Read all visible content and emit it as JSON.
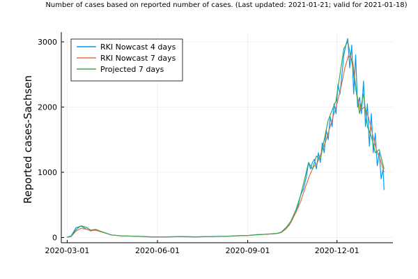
{
  "chart_data": {
    "type": "line",
    "title": "Number of cases based on reported number of cases. (Last updated: 2021-01-21; valid for 2021-01-18)",
    "xlabel": "",
    "ylabel": "Reported cases-Sachsen",
    "x_ticks": [
      "2020-03-01",
      "2020-06-01",
      "2020-09-01",
      "2020-12-01"
    ],
    "y_ticks": [
      0,
      1000,
      2000,
      3000
    ],
    "ylim": [
      -80,
      3150
    ],
    "xlim": [
      "2020-02-24",
      "2021-01-27"
    ],
    "grid": true,
    "legend_position": "top-left",
    "series": [
      {
        "name": "RKI Nowcast 4 days",
        "color": "#009AFA",
        "x": [
          "2020-03-01",
          "2020-03-05",
          "2020-03-10",
          "2020-03-15",
          "2020-03-20",
          "2020-03-25",
          "2020-03-30",
          "2020-04-05",
          "2020-04-15",
          "2020-04-25",
          "2020-05-10",
          "2020-05-25",
          "2020-06-10",
          "2020-06-25",
          "2020-07-10",
          "2020-07-25",
          "2020-08-10",
          "2020-08-25",
          "2020-09-01",
          "2020-09-10",
          "2020-09-20",
          "2020-09-30",
          "2020-10-05",
          "2020-10-10",
          "2020-10-13",
          "2020-10-16",
          "2020-10-19",
          "2020-10-22",
          "2020-10-25",
          "2020-10-28",
          "2020-10-31",
          "2020-11-02",
          "2020-11-04",
          "2020-11-06",
          "2020-11-08",
          "2020-11-10",
          "2020-11-12",
          "2020-11-14",
          "2020-11-16",
          "2020-11-18",
          "2020-11-20",
          "2020-11-22",
          "2020-11-24",
          "2020-11-26",
          "2020-11-28",
          "2020-11-30",
          "2020-12-02",
          "2020-12-04",
          "2020-12-06",
          "2020-12-08",
          "2020-12-10",
          "2020-12-12",
          "2020-12-14",
          "2020-12-16",
          "2020-12-18",
          "2020-12-20",
          "2020-12-22",
          "2020-12-24",
          "2020-12-26",
          "2020-12-28",
          "2020-12-30",
          "2021-01-01",
          "2021-01-03",
          "2021-01-05",
          "2021-01-07",
          "2021-01-09",
          "2021-01-11",
          "2021-01-13",
          "2021-01-15",
          "2021-01-17",
          "2021-01-18"
        ],
        "values": [
          5,
          25,
          150,
          175,
          135,
          100,
          120,
          90,
          40,
          25,
          20,
          10,
          10,
          15,
          10,
          15,
          20,
          30,
          30,
          45,
          50,
          60,
          80,
          150,
          180,
          260,
          380,
          470,
          650,
          750,
          950,
          1150,
          1050,
          1150,
          1200,
          1050,
          1300,
          1150,
          1450,
          1300,
          1650,
          1500,
          1850,
          1700,
          2050,
          1900,
          2350,
          2200,
          2500,
          2800,
          2950,
          3050,
          2600,
          2950,
          2200,
          2800,
          2000,
          2150,
          1900,
          2400,
          1700,
          2050,
          1400,
          1900,
          1300,
          1600,
          1100,
          1300,
          900,
          1050,
          730
        ]
      },
      {
        "name": "RKI Nowcast 7 days",
        "color": "#E26F46",
        "x": [
          "2020-03-01",
          "2020-03-05",
          "2020-03-10",
          "2020-03-15",
          "2020-03-20",
          "2020-03-25",
          "2020-03-30",
          "2020-04-05",
          "2020-04-15",
          "2020-04-25",
          "2020-05-10",
          "2020-05-25",
          "2020-06-10",
          "2020-06-25",
          "2020-07-10",
          "2020-07-25",
          "2020-08-10",
          "2020-08-25",
          "2020-09-01",
          "2020-09-10",
          "2020-09-20",
          "2020-09-30",
          "2020-10-05",
          "2020-10-10",
          "2020-10-15",
          "2020-10-20",
          "2020-10-25",
          "2020-10-30",
          "2020-11-03",
          "2020-11-07",
          "2020-11-11",
          "2020-11-15",
          "2020-11-19",
          "2020-11-23",
          "2020-11-27",
          "2020-12-01",
          "2020-12-05",
          "2020-12-09",
          "2020-12-13",
          "2020-12-17",
          "2020-12-21",
          "2020-12-25",
          "2020-12-29",
          "2021-01-02",
          "2021-01-06",
          "2021-01-10",
          "2021-01-14",
          "2021-01-18"
        ],
        "values": [
          5,
          15,
          100,
          140,
          130,
          105,
          110,
          85,
          40,
          25,
          20,
          10,
          10,
          12,
          10,
          14,
          18,
          28,
          30,
          42,
          50,
          60,
          75,
          130,
          230,
          380,
          550,
          780,
          950,
          1080,
          1150,
          1300,
          1450,
          1650,
          1850,
          2050,
          2300,
          2600,
          2800,
          2700,
          2200,
          1950,
          2000,
          1850,
          1600,
          1350,
          1200,
          1000
        ]
      },
      {
        "name": "Projected 7 days",
        "color": "#3EA44E",
        "x": [
          "2020-03-01",
          "2020-03-05",
          "2020-03-10",
          "2020-03-15",
          "2020-03-20",
          "2020-03-25",
          "2020-03-30",
          "2020-04-05",
          "2020-04-15",
          "2020-04-25",
          "2020-05-10",
          "2020-05-25",
          "2020-06-10",
          "2020-06-25",
          "2020-07-10",
          "2020-07-25",
          "2020-08-10",
          "2020-08-25",
          "2020-09-01",
          "2020-09-10",
          "2020-09-20",
          "2020-09-30",
          "2020-10-05",
          "2020-10-10",
          "2020-10-15",
          "2020-10-20",
          "2020-10-25",
          "2020-10-29",
          "2020-11-02",
          "2020-11-06",
          "2020-11-10",
          "2020-11-14",
          "2020-11-18",
          "2020-11-22",
          "2020-11-26",
          "2020-11-30",
          "2020-12-04",
          "2020-12-08",
          "2020-12-12",
          "2020-12-16",
          "2020-12-20",
          "2020-12-24",
          "2020-12-28",
          "2021-01-01",
          "2021-01-05",
          "2021-01-09",
          "2021-01-13",
          "2021-01-18"
        ],
        "values": [
          5,
          20,
          120,
          180,
          160,
          115,
          125,
          90,
          40,
          25,
          20,
          10,
          10,
          12,
          10,
          14,
          18,
          28,
          30,
          42,
          50,
          60,
          80,
          150,
          250,
          420,
          650,
          900,
          1150,
          1050,
          1250,
          1200,
          1500,
          1800,
          1950,
          2100,
          2500,
          2900,
          3000,
          2700,
          2300,
          1900,
          2200,
          1700,
          1550,
          1300,
          1350,
          1050
        ]
      }
    ]
  }
}
